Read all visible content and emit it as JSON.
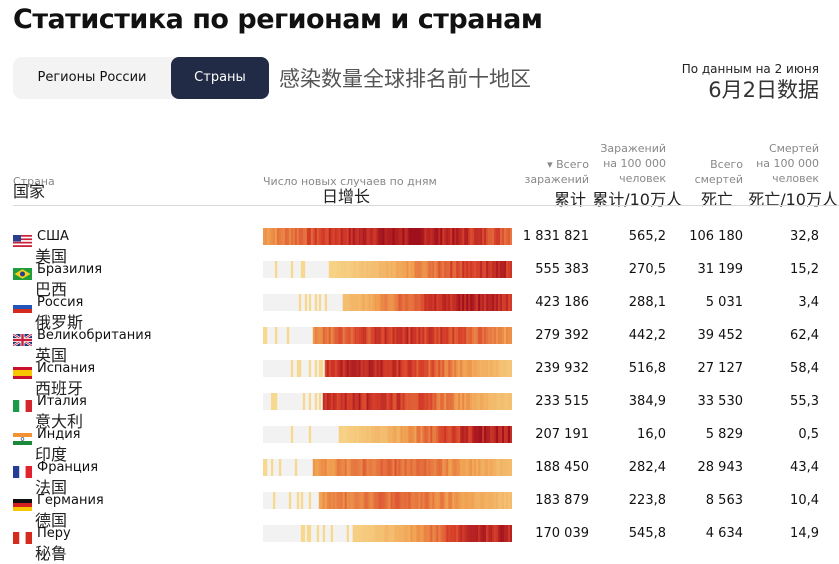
{
  "page": {
    "title": "Статистика по регионам и странам",
    "tabs": [
      "Регионы России",
      "Страны"
    ],
    "active_tab": "Страны",
    "overlay_note": "感染数量全球排名前十地区",
    "date_ru": "По данным на 2 июня",
    "date_zh": "6月2日数据"
  },
  "headers": {
    "country": "Страна",
    "country_zh": "国家",
    "daily": "Число новых случаев по дням",
    "daily_zh": "日增长",
    "total": [
      "▾ Всего",
      "заражений"
    ],
    "total_zh": "累计",
    "per100k": [
      "Заражений",
      "на 100 000",
      "человек"
    ],
    "per100k_zh": "累计/10万人",
    "deaths": [
      "Всего",
      "смертей"
    ],
    "deaths_zh": "死亡",
    "deaths100k": [
      "Смертей",
      "на 100 000",
      "человек"
    ],
    "deaths100k_zh": "死亡/10万人"
  },
  "colors": {
    "pale": "#f8dc90",
    "mid": "#f0a050",
    "high": "#d8402a",
    "peak": "#a0101c",
    "empty": "#f2f2f2",
    "accent": "#222b45"
  },
  "chart_data": {
    "type": "table",
    "columns": [
      "Страна",
      "Всего заражений",
      "Заражений на 100 000 человек",
      "Всего смертей",
      "Смертей на 100 000 человек"
    ],
    "rows": [
      {
        "flag": "us",
        "name": "США",
        "zh": "美国",
        "total": "1 831 821",
        "per100k": "565,2",
        "deaths": "106 180",
        "deaths100k": "32,8",
        "start": 0.0,
        "peak": 0.58,
        "intensity": 1.0
      },
      {
        "flag": "br",
        "name": "Бразилия",
        "zh": "巴西",
        "total": "555 383",
        "per100k": "270,5",
        "deaths": "31 199",
        "deaths100k": "15,2",
        "start": 0.26,
        "peak": 0.99,
        "intensity": 0.85
      },
      {
        "flag": "ru",
        "name": "Россия",
        "zh": "俄罗斯",
        "total": "423 186",
        "per100k": "288,1",
        "deaths": "5 031",
        "deaths100k": "3,4",
        "start": 0.32,
        "peak": 0.86,
        "intensity": 0.95
      },
      {
        "flag": "gb",
        "name": "Великобритания",
        "zh": "英国",
        "total": "279 392",
        "per100k": "442,2",
        "deaths": "39 452",
        "deaths100k": "62,4",
        "start": 0.2,
        "peak": 0.58,
        "intensity": 0.8
      },
      {
        "flag": "es",
        "name": "Испания",
        "zh": "西班牙",
        "total": "239 932",
        "per100k": "516,8",
        "deaths": "27 127",
        "deaths100k": "58,4",
        "start": 0.25,
        "peak": 0.4,
        "intensity": 0.9
      },
      {
        "flag": "it",
        "name": "Италия",
        "zh": "意大利",
        "total": "233 515",
        "per100k": "384,9",
        "deaths": "33 530",
        "deaths100k": "55,3",
        "start": 0.24,
        "peak": 0.4,
        "intensity": 0.85
      },
      {
        "flag": "in",
        "name": "Индия",
        "zh": "印度",
        "total": "207 191",
        "per100k": "16,0",
        "deaths": "5 829",
        "deaths100k": "0,5",
        "start": 0.3,
        "peak": 1.0,
        "intensity": 1.0
      },
      {
        "flag": "fr",
        "name": "Франция",
        "zh": "法国",
        "total": "188 450",
        "per100k": "282,4",
        "deaths": "28 943",
        "deaths100k": "43,4",
        "start": 0.2,
        "peak": 0.52,
        "intensity": 0.55
      },
      {
        "flag": "de",
        "name": "Германия",
        "zh": "德国",
        "total": "183 879",
        "per100k": "223,8",
        "deaths": "8 563",
        "deaths100k": "10,4",
        "start": 0.22,
        "peak": 0.5,
        "intensity": 0.55
      },
      {
        "flag": "pe",
        "name": "Перу",
        "zh": "秘鲁",
        "total": "170 039",
        "per100k": "545,8",
        "deaths": "4 634",
        "deaths100k": "14,9",
        "start": 0.36,
        "peak": 0.97,
        "intensity": 0.9
      }
    ]
  }
}
